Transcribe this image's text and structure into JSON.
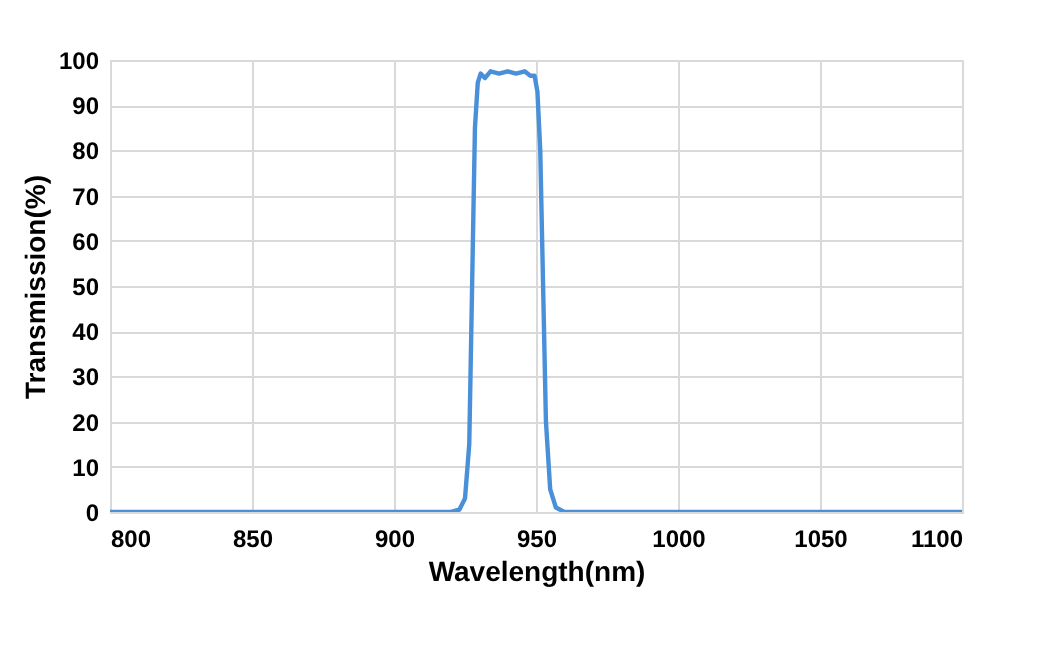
{
  "chart_data": {
    "type": "line",
    "xlabel": "Wavelength(nm)",
    "ylabel": "Transmission(%)",
    "xlim": [
      800,
      1100
    ],
    "xticks": [
      800,
      850,
      900,
      950,
      1000,
      1050,
      1100
    ],
    "ylim": [
      0,
      100
    ],
    "yticks": [
      0,
      10,
      20,
      30,
      40,
      50,
      60,
      70,
      80,
      90,
      100
    ],
    "grid": true,
    "legend": false,
    "marker": "none",
    "line_style": "solid",
    "series": [
      {
        "color": "#4a90d9",
        "x": [
          800,
          920,
          923,
          925,
          926.5,
          927.5,
          928.5,
          929.5,
          930.5,
          932,
          934,
          937,
          940,
          943,
          946,
          948,
          949.5,
          950.5,
          951.5,
          952.5,
          953.5,
          955,
          957,
          960,
          1100
        ],
        "values": [
          0,
          0,
          0.5,
          3,
          15,
          50,
          85,
          95,
          97,
          96,
          97.5,
          97,
          97.5,
          97,
          97.5,
          96.5,
          96.5,
          93,
          80,
          50,
          20,
          5,
          1,
          0,
          0
        ]
      }
    ]
  }
}
